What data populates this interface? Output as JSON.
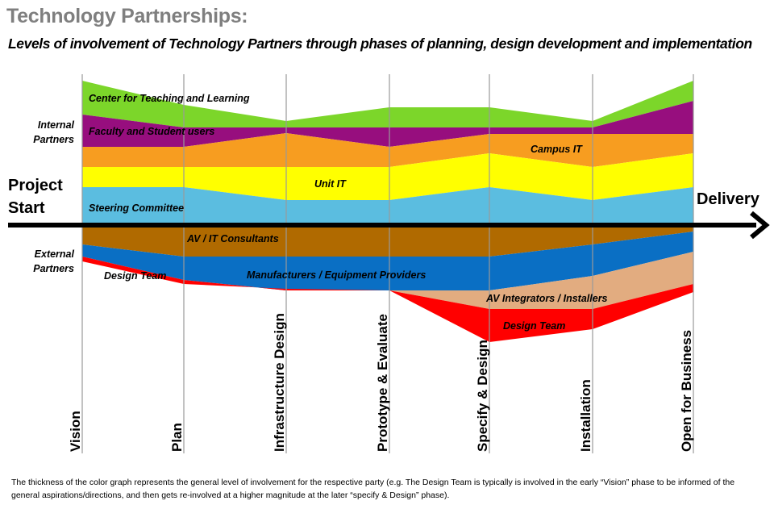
{
  "header": {
    "title": "Technology Partnerships:",
    "subtitle": "Levels of involvement of Technology Partners through phases of planning, design development and implementation"
  },
  "arrow": {
    "start_line1": "Project",
    "start_line2": "Start",
    "end_label": "Delivery"
  },
  "groups": {
    "internal_line1": "Internal",
    "internal_line2": "Partners",
    "external_line1": "External",
    "external_line2": "Partners"
  },
  "phases": [
    "Vision",
    "Plan",
    "Infrastructure Design",
    "Prototype & Evaluate",
    "Specify & Design",
    "Installation",
    "Open for Business"
  ],
  "bands": [
    {
      "id": "center-teaching",
      "label": "Center for Teaching and Learning",
      "color": "#7cd62a"
    },
    {
      "id": "faculty-students",
      "label": "Faculty and Student users",
      "color": "#970e7e"
    },
    {
      "id": "campus-it",
      "label": "Campus IT",
      "color": "#f79d20"
    },
    {
      "id": "unit-it",
      "label": "Unit IT",
      "color": "#ffff00"
    },
    {
      "id": "steering-committee",
      "label": "Steering Committee",
      "color": "#5bbde0"
    },
    {
      "id": "av-consultants",
      "label": "AV / IT Consultants",
      "color": "#b06a00"
    },
    {
      "id": "manufacturers",
      "label": "Manufacturers / Equipment Providers",
      "color": "#0a6fc4"
    },
    {
      "id": "design-team-early",
      "label": "Design Team",
      "color": "#ff0000"
    },
    {
      "id": "av-integrators",
      "label": "AV Integrators / Installers",
      "color": "#e2ac80"
    },
    {
      "id": "design-team-late",
      "label": "Design Team",
      "color": "#ff0000"
    }
  ],
  "footnote": "The thickness of the color graph represents the  general level of involvement for the respective party (e.g.  The Design Team  is typically is involved in the early “Vision” phase to be informed of the general aspirations/directions, and then gets re-involved at a higher magnitude at the later “specify & Design” phase)."
}
